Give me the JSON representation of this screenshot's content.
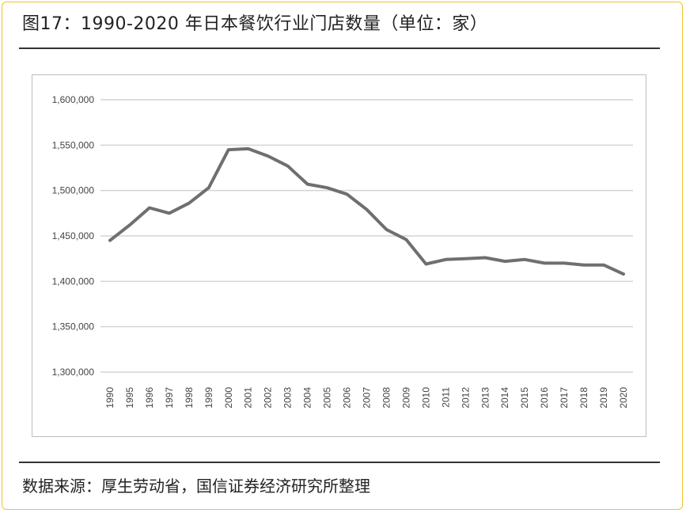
{
  "header": {
    "title": "图17：1990-2020 年日本餐饮行业门店数量（单位：家）"
  },
  "footer": {
    "source": "数据来源：厚生劳动省，国信证券经济研究所整理"
  },
  "colors": {
    "line": "#6f6f6f",
    "grid": "#d4d4d4",
    "frame_border": "#f2c230",
    "text": "#222222"
  },
  "chart_data": {
    "type": "line",
    "title": "",
    "xlabel": "",
    "ylabel": "",
    "x": [
      "1990",
      "1995",
      "1996",
      "1997",
      "1998",
      "1999",
      "2000",
      "2001",
      "2002",
      "2003",
      "2004",
      "2005",
      "2006",
      "2007",
      "2008",
      "2009",
      "2010",
      "2011",
      "2012",
      "2013",
      "2014",
      "2015",
      "2016",
      "2017",
      "2018",
      "2019",
      "2020"
    ],
    "series": [
      {
        "values": [
          1445000,
          1462000,
          1481000,
          1475000,
          1486000,
          1503000,
          1545000,
          1546000,
          1538000,
          1527000,
          1507000,
          1503000,
          1496000,
          1479000,
          1457000,
          1446000,
          1419000,
          1424000,
          1425000,
          1426000,
          1422000,
          1424000,
          1420000,
          1420000,
          1418000,
          1418000,
          1408000
        ]
      }
    ],
    "ylim": [
      1300000,
      1600000
    ],
    "yticks": [
      1300000,
      1350000,
      1400000,
      1450000,
      1500000,
      1550000,
      1600000
    ],
    "ytick_labels": [
      "1,300,000",
      "1,350,000",
      "1,400,000",
      "1,450,000",
      "1,500,000",
      "1,550,000",
      "1,600,000"
    ],
    "grid": true,
    "legend": "none"
  }
}
